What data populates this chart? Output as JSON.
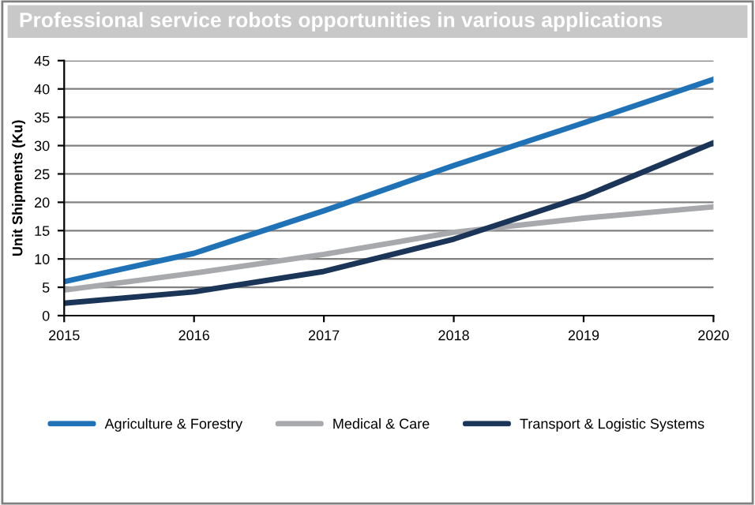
{
  "chart_data": {
    "type": "line",
    "title": "Professional service robots opportunities in various applications",
    "ylabel": "Unit Shipments (Ku)",
    "x": [
      2015,
      2016,
      2017,
      2018,
      2019,
      2020
    ],
    "series": [
      {
        "name": "Agriculture & Forestry",
        "color": "#1f72b6",
        "values": [
          6,
          11,
          18.5,
          26.5,
          34,
          41.7
        ]
      },
      {
        "name": "Medical & Care",
        "color": "#a7a9ac",
        "values": [
          4.5,
          7.5,
          10.8,
          14.7,
          17.2,
          19.2
        ]
      },
      {
        "name": "Transport & Logistic Systems",
        "color": "#1b3558",
        "values": [
          2.2,
          4.2,
          7.8,
          13.5,
          21,
          30.5
        ]
      }
    ],
    "xlim": [
      2015,
      2020
    ],
    "xticks": [
      2015,
      2016,
      2017,
      2018,
      2019,
      2020
    ],
    "ylim": [
      0,
      45
    ],
    "yticks": [
      0,
      5,
      10,
      15,
      20,
      25,
      30,
      35,
      40,
      45
    ],
    "grid": "y",
    "legend": "bottom",
    "line_style": "solid",
    "marker": "none"
  }
}
